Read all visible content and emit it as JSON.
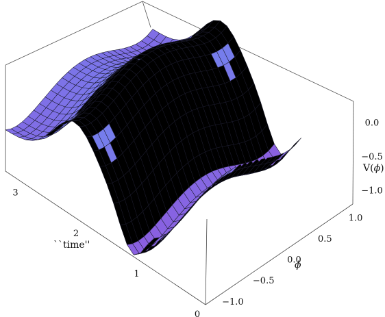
{
  "chart_data": {
    "type": "surface3d",
    "title": "",
    "axes": {
      "time": {
        "label": "``time''",
        "range": [
          0,
          3.3
        ],
        "ticks": [
          "0",
          "1",
          "2",
          "3"
        ]
      },
      "phi": {
        "label": "ϕ",
        "range": [
          -1.2,
          1.2
        ],
        "ticks": [
          "−1.0",
          "−0.5",
          "0.0",
          "0.5",
          "1.0"
        ]
      },
      "v": {
        "label_main": "V(",
        "label_sym": "ϕ",
        "label_close": ")",
        "range": [
          -1.2,
          0.4
        ],
        "ticks": [
          "−1.0",
          "−0.5",
          "0.0"
        ]
      }
    },
    "surface": {
      "description_function": "V(phi,t) = 0.3*(phi^2-1)^2 - 1.0 + 0.8*exp(-4*(t-2.15)^2) - 0.6*exp(-12*(t-1.2)^2)",
      "mesh_time_steps": 22,
      "mesh_phi_steps": 26,
      "colors": {
        "blue": "#6f87f0",
        "violet": "#8a5fe0",
        "pink": "#f0a0c8",
        "peach": "#f4b48a",
        "light": "#d8e6ff"
      }
    },
    "box": true,
    "grid": false
  }
}
